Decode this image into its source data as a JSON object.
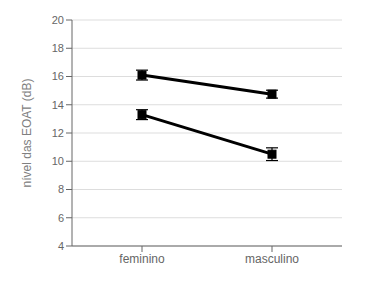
{
  "chart_data": {
    "type": "line",
    "ylabel": "nível das EOAT  (dB)",
    "categories": [
      "feminino",
      "masculino"
    ],
    "series": [
      {
        "color": "#000000",
        "marker": "square",
        "values": [
          16.1,
          14.75
        ],
        "errors": [
          0.35,
          0.28
        ]
      },
      {
        "color": "#000000",
        "marker": "square",
        "values": [
          13.3,
          10.5
        ],
        "errors": [
          0.35,
          0.45
        ]
      }
    ],
    "ylim": [
      4,
      20
    ],
    "yticks": [
      4,
      6,
      8,
      10,
      12,
      14,
      16,
      18,
      20
    ],
    "grid": true
  }
}
